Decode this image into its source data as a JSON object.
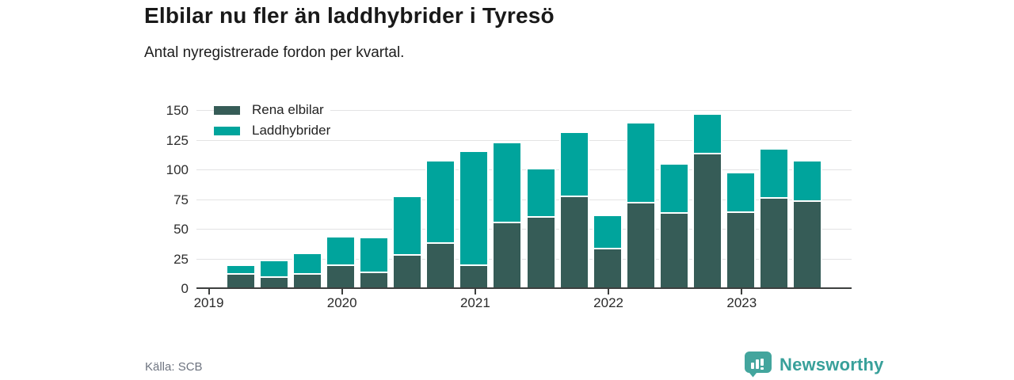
{
  "header": {
    "title": "Elbilar nu fler än laddhybrider i Tyresö",
    "subtitle": "Antal nyregistrerade fordon per kvartal."
  },
  "legend": {
    "items": [
      {
        "label": "Rena elbilar",
        "color": "#365c57"
      },
      {
        "label": "Laddhybrider",
        "color": "#00a49c"
      }
    ]
  },
  "chart_data": {
    "type": "bar",
    "stacked": true,
    "title": "Elbilar nu fler än laddhybrider i Tyresö",
    "subtitle": "Antal nyregistrerade fordon per kvartal.",
    "categories": [
      "2019 Q2",
      "2019 Q3",
      "2019 Q4",
      "2020 Q1",
      "2020 Q2",
      "2020 Q3",
      "2020 Q4",
      "2021 Q1",
      "2021 Q2",
      "2021 Q3",
      "2021 Q4",
      "2022 Q1",
      "2022 Q2",
      "2022 Q3",
      "2022 Q4",
      "2023 Q1",
      "2023 Q2",
      "2023 Q3"
    ],
    "series": [
      {
        "name": "Rena elbilar",
        "color": "#365c57",
        "values": [
          13,
          10,
          13,
          20,
          14,
          29,
          39,
          20,
          56,
          61,
          78,
          34,
          73,
          64,
          114,
          65,
          77,
          74
        ]
      },
      {
        "name": "Laddhybrider",
        "color": "#00a49c",
        "values": [
          6,
          13,
          16,
          23,
          28,
          48,
          68,
          95,
          66,
          39,
          53,
          27,
          66,
          40,
          32,
          32,
          40,
          33
        ]
      }
    ],
    "x_tick_labels": [
      "2019",
      "2020",
      "2021",
      "2022",
      "2023"
    ],
    "y_ticks": [
      0,
      25,
      50,
      75,
      100,
      125,
      150
    ],
    "ylim": [
      0,
      156
    ],
    "xlabel": "",
    "ylabel": "",
    "grid": "horizontal",
    "legend_position": "top-left"
  },
  "footer": {
    "source": "Källa: SCB",
    "brand": "Newsworthy",
    "brand_icon": "bar-chart-speech-bubble-icon",
    "brand_color": "#43a59d"
  },
  "colors": {
    "background": "#ffffff",
    "gridline": "#e3e3e4",
    "axis": "#3d3f3e",
    "axis_text": "#2d2d2d",
    "title_text": "#191919",
    "source_text": "#6e7480"
  }
}
